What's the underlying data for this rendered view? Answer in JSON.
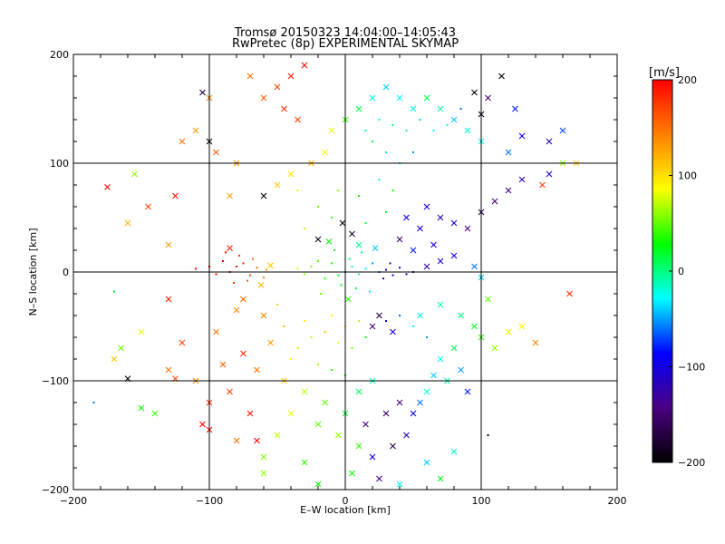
{
  "chart_data": {
    "type": "scatter",
    "title": "Tromsø 20150323 14:04:00–14:05:43",
    "subtitle": "RwPretec (8p) EXPERIMENTAL SKYMAP",
    "xlabel": "E–W location [km]",
    "ylabel": "N–S location [km]",
    "xlim": [
      -200,
      200
    ],
    "ylim": [
      -200,
      200
    ],
    "xticks": [
      "−200",
      "−100",
      "0",
      "100",
      "200"
    ],
    "yticks": [
      "200",
      "100",
      "0",
      "−100",
      "−200"
    ],
    "grid": true,
    "marker_types": [
      "x",
      "dot"
    ],
    "colorbar": {
      "unit": "[m/s]",
      "range": [
        -200,
        200
      ],
      "ticks": [
        "200",
        "100",
        "0",
        "−100",
        "−200"
      ],
      "colormap": [
        "#000000",
        "#4b0082",
        "#0000ff",
        "#00ffff",
        "#00ff00",
        "#ffff00",
        "#ff8000",
        "#ff0000"
      ]
    },
    "points": [
      [
        -80,
        5,
        190,
        "dot"
      ],
      [
        -85,
        0,
        195,
        "dot"
      ],
      [
        -75,
        8,
        185,
        "dot"
      ],
      [
        -70,
        -3,
        170,
        "dot"
      ],
      [
        -90,
        10,
        200,
        "dot"
      ],
      [
        -65,
        4,
        150,
        "dot"
      ],
      [
        -60,
        -5,
        140,
        "dot"
      ],
      [
        -95,
        -2,
        198,
        "dot"
      ],
      [
        -78,
        15,
        180,
        "dot"
      ],
      [
        -88,
        18,
        195,
        "dot"
      ],
      [
        -72,
        -8,
        160,
        "dot"
      ],
      [
        -100,
        5,
        200,
        "dot"
      ],
      [
        -110,
        3,
        200,
        "dot"
      ],
      [
        -82,
        -10,
        175,
        "dot"
      ],
      [
        -68,
        12,
        155,
        "dot"
      ],
      [
        -58,
        2,
        130,
        "dot"
      ],
      [
        -62,
        -12,
        120,
        "x"
      ],
      [
        -55,
        6,
        110,
        "x"
      ],
      [
        -75,
        -25,
        150,
        "x"
      ],
      [
        -85,
        22,
        190,
        "x"
      ],
      [
        0,
        0,
        10,
        "dot"
      ],
      [
        5,
        5,
        0,
        "dot"
      ],
      [
        -5,
        -3,
        20,
        "dot"
      ],
      [
        10,
        -2,
        -10,
        "dot"
      ],
      [
        -10,
        8,
        30,
        "dot"
      ],
      [
        15,
        3,
        -30,
        "dot"
      ],
      [
        -15,
        -6,
        40,
        "dot"
      ],
      [
        3,
        12,
        5,
        "dot"
      ],
      [
        -3,
        -12,
        25,
        "dot"
      ],
      [
        20,
        8,
        -50,
        "dot"
      ],
      [
        -20,
        10,
        45,
        "dot"
      ],
      [
        8,
        -15,
        15,
        "dot"
      ],
      [
        25,
        0,
        -60,
        "dot"
      ],
      [
        30,
        2,
        -110,
        "dot"
      ],
      [
        35,
        -3,
        -120,
        "dot"
      ],
      [
        40,
        4,
        -100,
        "dot"
      ],
      [
        28,
        -6,
        -130,
        "dot"
      ],
      [
        45,
        -2,
        -90,
        "dot"
      ],
      [
        33,
        8,
        -115,
        "dot"
      ],
      [
        50,
        0,
        -80,
        "dot"
      ],
      [
        -25,
        5,
        55,
        "dot"
      ],
      [
        -30,
        -2,
        60,
        "dot"
      ],
      [
        -35,
        3,
        70,
        "dot"
      ],
      [
        12,
        18,
        0,
        "dot"
      ],
      [
        -8,
        20,
        15,
        "dot"
      ],
      [
        18,
        -18,
        -20,
        "dot"
      ],
      [
        -18,
        -20,
        50,
        "dot"
      ],
      [
        2,
        -25,
        40,
        "x"
      ],
      [
        10,
        25,
        -5,
        "x"
      ],
      [
        -12,
        28,
        30,
        "x"
      ],
      [
        22,
        22,
        -40,
        "x"
      ],
      [
        -2,
        45,
        -200,
        "x"
      ],
      [
        5,
        35,
        -180,
        "x"
      ],
      [
        -20,
        30,
        -190,
        "x"
      ],
      [
        40,
        30,
        -150,
        "x"
      ],
      [
        -10,
        -40,
        90,
        "dot"
      ],
      [
        0,
        -50,
        100,
        "dot"
      ],
      [
        -15,
        -55,
        110,
        "dot"
      ],
      [
        -25,
        -60,
        105,
        "dot"
      ],
      [
        -5,
        -65,
        80,
        "dot"
      ],
      [
        5,
        -70,
        60,
        "dot"
      ],
      [
        -30,
        -45,
        95,
        "dot"
      ],
      [
        -35,
        -70,
        100,
        "dot"
      ],
      [
        10,
        -45,
        70,
        "dot"
      ],
      [
        -45,
        -50,
        120,
        "dot"
      ],
      [
        -40,
        -80,
        90,
        "dot"
      ],
      [
        -20,
        -85,
        60,
        "dot"
      ],
      [
        -10,
        -90,
        40,
        "dot"
      ],
      [
        0,
        -95,
        30,
        "dot"
      ],
      [
        15,
        -60,
        20,
        "dot"
      ],
      [
        -50,
        -30,
        110,
        "dot"
      ],
      [
        -55,
        -65,
        130,
        "x"
      ],
      [
        -60,
        -40,
        140,
        "x"
      ],
      [
        -65,
        -90,
        150,
        "x"
      ],
      [
        -45,
        -100,
        110,
        "x"
      ],
      [
        -30,
        -110,
        70,
        "x"
      ],
      [
        -15,
        -120,
        50,
        "x"
      ],
      [
        0,
        -130,
        20,
        "x"
      ],
      [
        10,
        -110,
        10,
        "x"
      ],
      [
        20,
        -100,
        -10,
        "x"
      ],
      [
        -5,
        -150,
        60,
        "x"
      ],
      [
        10,
        -160,
        40,
        "x"
      ],
      [
        -20,
        -140,
        50,
        "x"
      ],
      [
        -40,
        -130,
        80,
        "x"
      ],
      [
        -50,
        -150,
        70,
        "x"
      ],
      [
        -60,
        -170,
        55,
        "x"
      ],
      [
        -30,
        -175,
        40,
        "x"
      ],
      [
        5,
        -185,
        30,
        "x"
      ],
      [
        20,
        -170,
        -100,
        "x"
      ],
      [
        25,
        -190,
        -140,
        "x"
      ],
      [
        35,
        -160,
        -170,
        "x"
      ],
      [
        45,
        -150,
        -120,
        "x"
      ],
      [
        50,
        -130,
        -90,
        "x"
      ],
      [
        55,
        -120,
        -60,
        "x"
      ],
      [
        60,
        -110,
        -20,
        "x"
      ],
      [
        40,
        -120,
        -150,
        "x"
      ],
      [
        30,
        -130,
        -160,
        "x"
      ],
      [
        15,
        -140,
        -140,
        "x"
      ],
      [
        65,
        -95,
        -40,
        "x"
      ],
      [
        70,
        -80,
        -30,
        "x"
      ],
      [
        75,
        -100,
        -10,
        "x"
      ],
      [
        80,
        -70,
        10,
        "x"
      ],
      [
        85,
        -90,
        -50,
        "x"
      ],
      [
        90,
        -110,
        -80,
        "x"
      ],
      [
        60,
        -60,
        -50,
        "dot"
      ],
      [
        50,
        -50,
        -30,
        "dot"
      ],
      [
        40,
        -40,
        -60,
        "dot"
      ],
      [
        30,
        -45,
        -90,
        "dot"
      ],
      [
        20,
        -50,
        -140,
        "x"
      ],
      [
        25,
        -40,
        -170,
        "x"
      ],
      [
        35,
        -55,
        -110,
        "x"
      ],
      [
        55,
        -40,
        -20,
        "x"
      ],
      [
        70,
        -30,
        -10,
        "x"
      ],
      [
        85,
        -40,
        0,
        "x"
      ],
      [
        95,
        -50,
        20,
        "x"
      ],
      [
        100,
        -60,
        40,
        "x"
      ],
      [
        110,
        -70,
        60,
        "x"
      ],
      [
        120,
        -55,
        80,
        "x"
      ],
      [
        130,
        -50,
        90,
        "x"
      ],
      [
        140,
        -65,
        140,
        "x"
      ],
      [
        165,
        -20,
        180,
        "x"
      ],
      [
        105,
        -25,
        50,
        "x"
      ],
      [
        100,
        -5,
        -40,
        "x"
      ],
      [
        95,
        5,
        -60,
        "x"
      ],
      [
        80,
        15,
        -90,
        "x"
      ],
      [
        70,
        10,
        -110,
        "x"
      ],
      [
        60,
        5,
        -130,
        "x"
      ],
      [
        65,
        25,
        -100,
        "x"
      ],
      [
        50,
        20,
        -80,
        "x"
      ],
      [
        55,
        40,
        -110,
        "x"
      ],
      [
        45,
        50,
        -90,
        "x"
      ],
      [
        60,
        60,
        -100,
        "x"
      ],
      [
        70,
        50,
        -120,
        "x"
      ],
      [
        80,
        45,
        -100,
        "x"
      ],
      [
        90,
        40,
        -140,
        "x"
      ],
      [
        100,
        55,
        -170,
        "x"
      ],
      [
        110,
        65,
        -150,
        "x"
      ],
      [
        120,
        75,
        -130,
        "x"
      ],
      [
        130,
        85,
        -120,
        "x"
      ],
      [
        150,
        90,
        -110,
        "x"
      ],
      [
        160,
        100,
        60,
        "x"
      ],
      [
        145,
        80,
        170,
        "x"
      ],
      [
        170,
        100,
        110,
        "x"
      ],
      [
        120,
        110,
        -60,
        "x"
      ],
      [
        100,
        120,
        -30,
        "x"
      ],
      [
        90,
        130,
        -20,
        "x"
      ],
      [
        80,
        140,
        -40,
        "x"
      ],
      [
        70,
        150,
        -10,
        "x"
      ],
      [
        60,
        160,
        10,
        "x"
      ],
      [
        50,
        150,
        -20,
        "x"
      ],
      [
        40,
        160,
        -30,
        "x"
      ],
      [
        30,
        170,
        -40,
        "x"
      ],
      [
        20,
        160,
        -20,
        "x"
      ],
      [
        10,
        150,
        10,
        "x"
      ],
      [
        0,
        140,
        40,
        "x"
      ],
      [
        -10,
        130,
        80,
        "x"
      ],
      [
        15,
        130,
        -10,
        "dot"
      ],
      [
        25,
        140,
        -30,
        "dot"
      ],
      [
        35,
        135,
        0,
        "dot"
      ],
      [
        45,
        130,
        -20,
        "dot"
      ],
      [
        55,
        140,
        -40,
        "dot"
      ],
      [
        65,
        130,
        -30,
        "dot"
      ],
      [
        75,
        135,
        -20,
        "dot"
      ],
      [
        85,
        150,
        -60,
        "dot"
      ],
      [
        20,
        120,
        10,
        "dot"
      ],
      [
        30,
        110,
        -10,
        "dot"
      ],
      [
        40,
        100,
        -30,
        "dot"
      ],
      [
        50,
        110,
        -50,
        "dot"
      ],
      [
        95,
        165,
        -200,
        "x"
      ],
      [
        100,
        145,
        -190,
        "x"
      ],
      [
        115,
        180,
        -200,
        "x"
      ],
      [
        105,
        160,
        -150,
        "x"
      ],
      [
        125,
        150,
        -80,
        "x"
      ],
      [
        130,
        125,
        -90,
        "x"
      ],
      [
        150,
        120,
        -120,
        "x"
      ],
      [
        160,
        130,
        -70,
        "x"
      ],
      [
        -30,
        190,
        200,
        "x"
      ],
      [
        -40,
        180,
        190,
        "x"
      ],
      [
        -50,
        170,
        170,
        "x"
      ],
      [
        -60,
        160,
        160,
        "x"
      ],
      [
        -45,
        150,
        180,
        "x"
      ],
      [
        -35,
        140,
        170,
        "x"
      ],
      [
        -70,
        180,
        150,
        "x"
      ],
      [
        -100,
        160,
        140,
        "x"
      ],
      [
        -110,
        130,
        130,
        "x"
      ],
      [
        -120,
        120,
        150,
        "x"
      ],
      [
        -100,
        120,
        -200,
        "x"
      ],
      [
        -105,
        165,
        -180,
        "x"
      ],
      [
        -95,
        110,
        160,
        "x"
      ],
      [
        -80,
        100,
        140,
        "x"
      ],
      [
        -85,
        70,
        130,
        "x"
      ],
      [
        -60,
        70,
        -200,
        "x"
      ],
      [
        -50,
        80,
        110,
        "x"
      ],
      [
        -40,
        90,
        100,
        "x"
      ],
      [
        -25,
        100,
        120,
        "x"
      ],
      [
        -15,
        110,
        90,
        "x"
      ],
      [
        -175,
        78,
        200,
        "x"
      ],
      [
        -155,
        90,
        60,
        "x"
      ],
      [
        -145,
        60,
        170,
        "x"
      ],
      [
        -125,
        70,
        190,
        "x"
      ],
      [
        -160,
        45,
        120,
        "x"
      ],
      [
        -130,
        25,
        130,
        "x"
      ],
      [
        -170,
        -18,
        20,
        "dot"
      ],
      [
        -130,
        -25,
        190,
        "x"
      ],
      [
        -150,
        -55,
        80,
        "x"
      ],
      [
        -165,
        -70,
        50,
        "x"
      ],
      [
        -170,
        -80,
        110,
        "x"
      ],
      [
        -160,
        -98,
        -200,
        "x"
      ],
      [
        -125,
        -98,
        170,
        "x"
      ],
      [
        -130,
        -90,
        150,
        "x"
      ],
      [
        -110,
        -100,
        140,
        "x"
      ],
      [
        -100,
        -120,
        180,
        "x"
      ],
      [
        -100,
        -145,
        190,
        "x"
      ],
      [
        -105,
        -140,
        200,
        "x"
      ],
      [
        -150,
        -125,
        30,
        "x"
      ],
      [
        -140,
        -130,
        40,
        "x"
      ],
      [
        -185,
        -120,
        -60,
        "dot"
      ],
      [
        -120,
        -65,
        170,
        "x"
      ],
      [
        -95,
        -55,
        150,
        "x"
      ],
      [
        -90,
        -85,
        160,
        "x"
      ],
      [
        -80,
        -35,
        140,
        "x"
      ],
      [
        -75,
        -75,
        180,
        "x"
      ],
      [
        -85,
        -110,
        170,
        "x"
      ],
      [
        -70,
        -130,
        190,
        "x"
      ],
      [
        -65,
        -155,
        200,
        "x"
      ],
      [
        -80,
        -155,
        150,
        "x"
      ],
      [
        -60,
        -185,
        60,
        "x"
      ],
      [
        -20,
        -195,
        30,
        "x"
      ],
      [
        40,
        -195,
        -30,
        "x"
      ],
      [
        60,
        -175,
        -40,
        "x"
      ],
      [
        70,
        -190,
        20,
        "x"
      ],
      [
        80,
        -165,
        -20,
        "x"
      ],
      [
        105,
        -150,
        -200,
        "dot"
      ],
      [
        -5,
        75,
        60,
        "dot"
      ],
      [
        10,
        70,
        30,
        "dot"
      ],
      [
        -20,
        60,
        50,
        "dot"
      ],
      [
        30,
        55,
        20,
        "dot"
      ],
      [
        -30,
        40,
        70,
        "dot"
      ],
      [
        15,
        45,
        10,
        "dot"
      ],
      [
        -10,
        50,
        40,
        "dot"
      ],
      [
        35,
        75,
        30,
        "dot"
      ],
      [
        -35,
        75,
        90,
        "dot"
      ],
      [
        25,
        85,
        -10,
        "dot"
      ]
    ]
  }
}
